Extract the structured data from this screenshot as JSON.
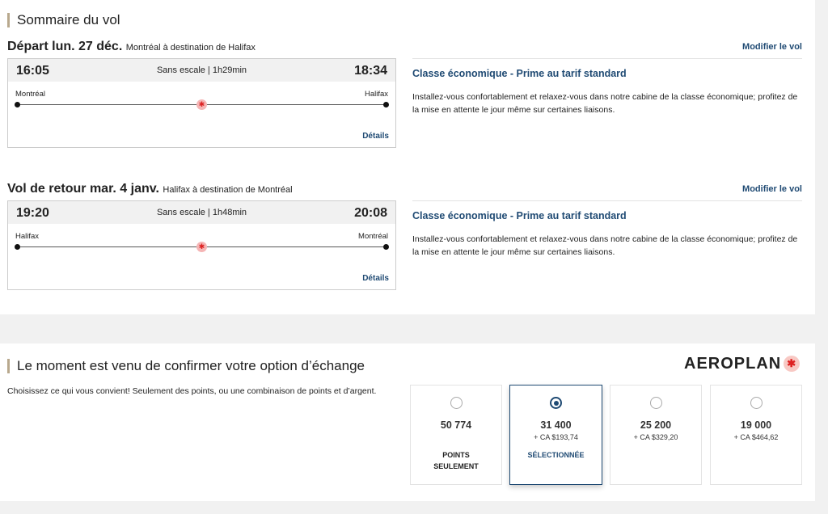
{
  "summary": {
    "title": "Sommaire du vol",
    "legs": [
      {
        "heading": "Départ lun. 27 déc.",
        "route": "Montréal à destination de Halifax",
        "modify": "Modifier le vol",
        "dep_time": "16:05",
        "arr_time": "18:34",
        "info": "Sans escale | 1h29min",
        "from": "Montréal",
        "to": "Halifax",
        "details": "Détails",
        "cabin": "Classe économique - Prime au tarif standard",
        "cabin_desc": "Installez-vous confortablement et relaxez-vous dans notre cabine de la classe économique; profitez de la mise en attente le jour même sur certaines liaisons."
      },
      {
        "heading": "Vol de retour mar. 4 janv.",
        "route": "Halifax à destination de Montréal",
        "modify": "Modifier le vol",
        "dep_time": "19:20",
        "arr_time": "20:08",
        "info": "Sans escale | 1h48min",
        "from": "Halifax",
        "to": "Montréal",
        "details": "Détails",
        "cabin": "Classe économique - Prime au tarif standard",
        "cabin_desc": "Installez-vous confortablement et relaxez-vous dans notre cabine de la classe économique; profitez de la mise en attente le jour même sur certaines liaisons."
      }
    ]
  },
  "exchange": {
    "title": "Le moment est venu de confirmer votre option d’échange",
    "logo": "AEROPLAN",
    "desc": "Choisissez ce qui vous convient! Seulement des points, ou une combinaison de points et d’argent.",
    "options": [
      {
        "points": "50 774",
        "cash": "",
        "label": "POINTS SEULEMENT",
        "selected": false
      },
      {
        "points": "31 400",
        "cash": "+ CA $193,74",
        "label": "SÉLECTIONNÉE",
        "selected": true
      },
      {
        "points": "25 200",
        "cash": "+ CA $329,20",
        "label": "",
        "selected": false
      },
      {
        "points": "19 000",
        "cash": "+ CA $464,62",
        "label": "",
        "selected": false
      }
    ]
  },
  "colors": {
    "accent": "#1f4a73",
    "title_bar": "#b8a88d",
    "brand_red": "#d22222"
  }
}
